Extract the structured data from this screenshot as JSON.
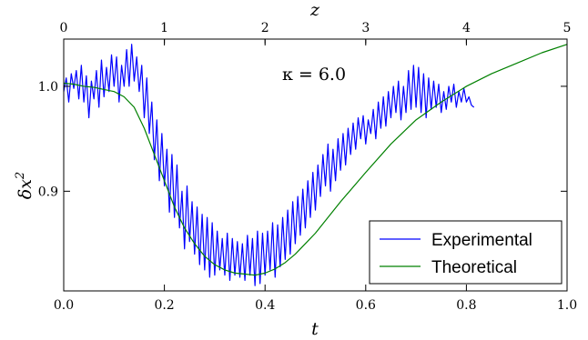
{
  "chart_data": {
    "type": "line",
    "title": "",
    "xlabel": "t",
    "ylabel_base": "δx",
    "ylabel_sup": "2",
    "top_xlabel": "z",
    "xlim": [
      0.0,
      1.0
    ],
    "ylim": [
      0.805,
      1.045
    ],
    "top_xlim": [
      0,
      5
    ],
    "x_ticks": [
      0.0,
      0.2,
      0.4,
      0.6,
      0.8,
      1.0
    ],
    "x_tick_labels": [
      "0.0",
      "0.2",
      "0.4",
      "0.6",
      "0.8",
      "1.0"
    ],
    "y_ticks": [
      0.9,
      1.0
    ],
    "y_tick_labels": [
      "0.9",
      "1.0"
    ],
    "top_ticks": [
      0,
      1,
      2,
      3,
      4,
      5
    ],
    "top_tick_labels": [
      "0",
      "1",
      "2",
      "3",
      "4",
      "5"
    ],
    "annotation": "κ = 6.0",
    "legend_position": "lower-right",
    "series": [
      {
        "name": "Experimental",
        "color": "#0000ff",
        "points": [
          [
            0.0,
            0.995
          ],
          [
            0.005,
            1.008
          ],
          [
            0.01,
            0.985
          ],
          [
            0.015,
            1.012
          ],
          [
            0.02,
            0.998
          ],
          [
            0.025,
            1.015
          ],
          [
            0.03,
            0.988
          ],
          [
            0.035,
            1.02
          ],
          [
            0.04,
            0.985
          ],
          [
            0.045,
            1.01
          ],
          [
            0.05,
            0.97
          ],
          [
            0.055,
            1.005
          ],
          [
            0.06,
            0.988
          ],
          [
            0.065,
            1.015
          ],
          [
            0.07,
            0.98
          ],
          [
            0.075,
            1.025
          ],
          [
            0.08,
            0.99
          ],
          [
            0.085,
            1.018
          ],
          [
            0.09,
            0.995
          ],
          [
            0.095,
            1.03
          ],
          [
            0.1,
            1.0
          ],
          [
            0.105,
            1.028
          ],
          [
            0.11,
            0.985
          ],
          [
            0.115,
            1.02
          ],
          [
            0.12,
            1.0
          ],
          [
            0.125,
            1.035
          ],
          [
            0.13,
            1.0
          ],
          [
            0.135,
            1.04
          ],
          [
            0.14,
            1.005
          ],
          [
            0.145,
            1.028
          ],
          [
            0.15,
            0.995
          ],
          [
            0.155,
            1.02
          ],
          [
            0.16,
            0.97
          ],
          [
            0.165,
            1.008
          ],
          [
            0.17,
            0.955
          ],
          [
            0.175,
            0.985
          ],
          [
            0.18,
            0.93
          ],
          [
            0.185,
            0.968
          ],
          [
            0.19,
            0.91
          ],
          [
            0.195,
            0.955
          ],
          [
            0.2,
            0.905
          ],
          [
            0.205,
            0.94
          ],
          [
            0.21,
            0.88
          ],
          [
            0.215,
            0.935
          ],
          [
            0.22,
            0.875
          ],
          [
            0.225,
            0.925
          ],
          [
            0.23,
            0.865
          ],
          [
            0.235,
            0.9
          ],
          [
            0.24,
            0.845
          ],
          [
            0.245,
            0.905
          ],
          [
            0.25,
            0.852
          ],
          [
            0.255,
            0.89
          ],
          [
            0.26,
            0.84
          ],
          [
            0.265,
            0.885
          ],
          [
            0.27,
            0.83
          ],
          [
            0.275,
            0.878
          ],
          [
            0.28,
            0.825
          ],
          [
            0.285,
            0.875
          ],
          [
            0.29,
            0.818
          ],
          [
            0.295,
            0.87
          ],
          [
            0.3,
            0.82
          ],
          [
            0.305,
            0.862
          ],
          [
            0.31,
            0.825
          ],
          [
            0.315,
            0.855
          ],
          [
            0.32,
            0.82
          ],
          [
            0.325,
            0.86
          ],
          [
            0.33,
            0.815
          ],
          [
            0.335,
            0.855
          ],
          [
            0.34,
            0.82
          ],
          [
            0.345,
            0.852
          ],
          [
            0.35,
            0.818
          ],
          [
            0.355,
            0.85
          ],
          [
            0.36,
            0.815
          ],
          [
            0.365,
            0.858
          ],
          [
            0.37,
            0.82
          ],
          [
            0.375,
            0.855
          ],
          [
            0.38,
            0.81
          ],
          [
            0.385,
            0.862
          ],
          [
            0.39,
            0.812
          ],
          [
            0.395,
            0.86
          ],
          [
            0.4,
            0.82
          ],
          [
            0.405,
            0.862
          ],
          [
            0.41,
            0.825
          ],
          [
            0.415,
            0.87
          ],
          [
            0.42,
            0.818
          ],
          [
            0.425,
            0.868
          ],
          [
            0.43,
            0.828
          ],
          [
            0.435,
            0.875
          ],
          [
            0.44,
            0.835
          ],
          [
            0.445,
            0.882
          ],
          [
            0.45,
            0.84
          ],
          [
            0.455,
            0.89
          ],
          [
            0.46,
            0.85
          ],
          [
            0.465,
            0.895
          ],
          [
            0.47,
            0.858
          ],
          [
            0.475,
            0.902
          ],
          [
            0.48,
            0.865
          ],
          [
            0.485,
            0.91
          ],
          [
            0.49,
            0.875
          ],
          [
            0.495,
            0.918
          ],
          [
            0.5,
            0.882
          ],
          [
            0.505,
            0.925
          ],
          [
            0.51,
            0.895
          ],
          [
            0.515,
            0.935
          ],
          [
            0.52,
            0.905
          ],
          [
            0.525,
            0.945
          ],
          [
            0.53,
            0.9
          ],
          [
            0.535,
            0.94
          ],
          [
            0.54,
            0.91
          ],
          [
            0.545,
            0.95
          ],
          [
            0.55,
            0.92
          ],
          [
            0.555,
            0.955
          ],
          [
            0.56,
            0.925
          ],
          [
            0.565,
            0.96
          ],
          [
            0.57,
            0.935
          ],
          [
            0.575,
            0.965
          ],
          [
            0.58,
            0.94
          ],
          [
            0.585,
            0.97
          ],
          [
            0.59,
            0.95
          ],
          [
            0.595,
            0.972
          ],
          [
            0.6,
            0.945
          ],
          [
            0.605,
            0.968
          ],
          [
            0.61,
            0.955
          ],
          [
            0.615,
            0.978
          ],
          [
            0.62,
            0.95
          ],
          [
            0.625,
            0.985
          ],
          [
            0.63,
            0.96
          ],
          [
            0.635,
            0.99
          ],
          [
            0.64,
            0.962
          ],
          [
            0.645,
            0.995
          ],
          [
            0.65,
            0.97
          ],
          [
            0.655,
            1.0
          ],
          [
            0.66,
            0.975
          ],
          [
            0.665,
            1.005
          ],
          [
            0.67,
            0.968
          ],
          [
            0.675,
            1.0
          ],
          [
            0.68,
            0.975
          ],
          [
            0.685,
            1.015
          ],
          [
            0.69,
            0.978
          ],
          [
            0.695,
            1.02
          ],
          [
            0.7,
            0.98
          ],
          [
            0.705,
            1.018
          ],
          [
            0.71,
            0.975
          ],
          [
            0.715,
            1.012
          ],
          [
            0.72,
            0.97
          ],
          [
            0.725,
            1.008
          ],
          [
            0.73,
            0.978
          ],
          [
            0.735,
            1.005
          ],
          [
            0.74,
            0.98
          ],
          [
            0.745,
            1.002
          ],
          [
            0.75,
            0.975
          ],
          [
            0.755,
            0.995
          ],
          [
            0.76,
            0.978
          ],
          [
            0.765,
            1.0
          ],
          [
            0.77,
            0.985
          ],
          [
            0.775,
            1.002
          ],
          [
            0.78,
            0.98
          ],
          [
            0.785,
            0.995
          ],
          [
            0.79,
            0.985
          ],
          [
            0.795,
            0.998
          ],
          [
            0.8,
            0.985
          ],
          [
            0.805,
            0.99
          ],
          [
            0.81,
            0.982
          ],
          [
            0.815,
            0.98
          ]
        ]
      },
      {
        "name": "Theoretical",
        "color": "#008000",
        "points": [
          [
            0.0,
            1.003
          ],
          [
            0.02,
            1.002
          ],
          [
            0.04,
            1.0
          ],
          [
            0.06,
            0.999
          ],
          [
            0.08,
            0.997
          ],
          [
            0.1,
            0.995
          ],
          [
            0.12,
            0.99
          ],
          [
            0.14,
            0.98
          ],
          [
            0.16,
            0.96
          ],
          [
            0.18,
            0.935
          ],
          [
            0.2,
            0.91
          ],
          [
            0.22,
            0.885
          ],
          [
            0.24,
            0.865
          ],
          [
            0.26,
            0.85
          ],
          [
            0.28,
            0.838
          ],
          [
            0.3,
            0.83
          ],
          [
            0.32,
            0.825
          ],
          [
            0.34,
            0.822
          ],
          [
            0.36,
            0.821
          ],
          [
            0.38,
            0.82
          ],
          [
            0.4,
            0.822
          ],
          [
            0.42,
            0.826
          ],
          [
            0.44,
            0.832
          ],
          [
            0.46,
            0.84
          ],
          [
            0.48,
            0.85
          ],
          [
            0.5,
            0.86
          ],
          [
            0.55,
            0.89
          ],
          [
            0.6,
            0.918
          ],
          [
            0.65,
            0.945
          ],
          [
            0.7,
            0.968
          ],
          [
            0.75,
            0.985
          ],
          [
            0.8,
            1.0
          ],
          [
            0.85,
            1.012
          ],
          [
            0.9,
            1.022
          ],
          [
            0.95,
            1.032
          ],
          [
            1.0,
            1.04
          ]
        ]
      }
    ]
  }
}
